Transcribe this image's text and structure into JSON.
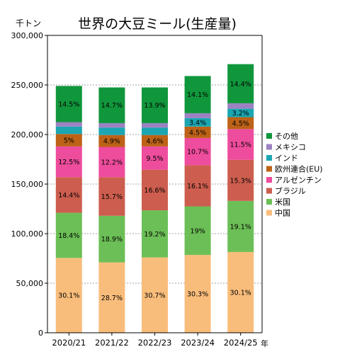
{
  "chart_data": {
    "type": "bar",
    "stacked": true,
    "title": "世界の大豆ミール(生産量)",
    "unit_label": "千トン",
    "x_unit": "年",
    "categories": [
      "2020/21",
      "2021/22",
      "2022/23",
      "2023/24",
      "2024/25"
    ],
    "y_ticks": [
      "0",
      "50,000",
      "100,000",
      "150,000",
      "200,000",
      "250,000",
      "300,000"
    ],
    "ylim": [
      0,
      300000
    ],
    "legend_position": "right",
    "series": [
      {
        "name": "中国",
        "color": "#f9bd7b",
        "values": [
          75500,
          71000,
          76000,
          78500,
          81500
        ],
        "labels": [
          "30.1%",
          "28.7%",
          "30.7%",
          "30.3%",
          "30.1%"
        ]
      },
      {
        "name": "米国",
        "color": "#6cbf56",
        "values": [
          45500,
          47000,
          47500,
          49000,
          51500
        ],
        "labels": [
          "18.4%",
          "18.9%",
          "19.2%",
          "19%",
          "19.1%"
        ]
      },
      {
        "name": "ブラジル",
        "color": "#cd5e4f",
        "values": [
          36000,
          39000,
          41000,
          41500,
          41500
        ],
        "labels": [
          "14.4%",
          "15.7%",
          "16.6%",
          "16.1%",
          "15.3%"
        ]
      },
      {
        "name": "アルゼンチン",
        "color": "#ee4c9c",
        "values": [
          31000,
          30500,
          23500,
          27500,
          31000
        ],
        "labels": [
          "12.5%",
          "12.2%",
          "9.5%",
          "10.7%",
          "11.5%"
        ]
      },
      {
        "name": "欧州連合(EU)",
        "color": "#bd6217",
        "values": [
          12500,
          12000,
          11500,
          11500,
          12000
        ],
        "labels": [
          "5%",
          "4.9%",
          "4.6%",
          "4.5%",
          "4.5%"
        ]
      },
      {
        "name": "インド",
        "color": "#1ba6b2",
        "values": [
          7500,
          7500,
          7500,
          8500,
          8500
        ],
        "labels": [
          "",
          "",
          "",
          "3.4%",
          "3.2%"
        ]
      },
      {
        "name": "メキシコ",
        "color": "#9c82c2",
        "values": [
          4500,
          4500,
          4500,
          5000,
          5500
        ],
        "labels": [
          "",
          "",
          "",
          "",
          ""
        ]
      },
      {
        "name": "その他",
        "color": "#10973c",
        "values": [
          36500,
          36000,
          36000,
          37500,
          39500
        ],
        "labels": [
          "14.5%",
          "14.7%",
          "13.9%",
          "14.1%",
          "14.4%"
        ]
      }
    ]
  }
}
